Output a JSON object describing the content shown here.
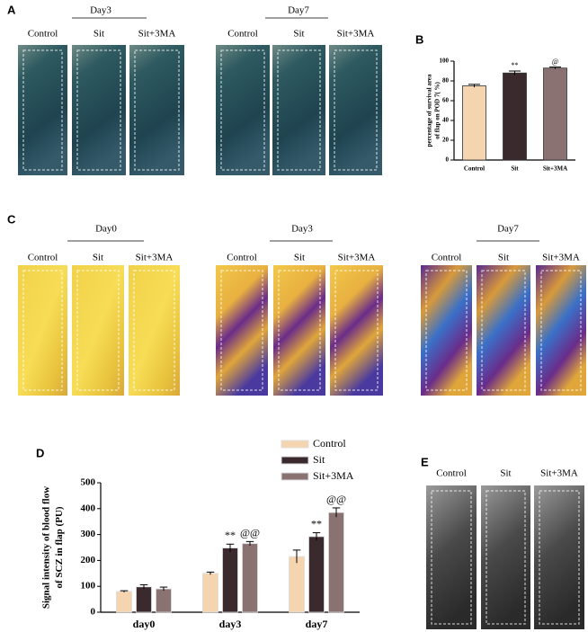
{
  "chart_data": [
    {
      "type": "bar",
      "label": "B",
      "y_label": [
        "percentage of survival area",
        "of flap on POD 7( %)"
      ],
      "categories": [
        "Control",
        "Sit",
        "Sit+3MA"
      ],
      "values": [
        75,
        88,
        93
      ],
      "errors": [
        1.5,
        2,
        1
      ],
      "colors": [
        "#f5d5b0",
        "#3a2a2e",
        "#8b7272"
      ],
      "annotations": [
        null,
        "**",
        "@"
      ],
      "ylim": [
        0,
        100
      ],
      "yticks": [
        0,
        20,
        40,
        60,
        80,
        100
      ]
    },
    {
      "type": "grouped_bar",
      "label": "D",
      "y_label": [
        "Signal intensity of blood flow",
        "of SCZ in flap  (PU)"
      ],
      "categories": [
        "day0",
        "day3",
        "day7"
      ],
      "series": [
        {
          "name": "Control",
          "color": "#f5d5b0",
          "values": [
            80,
            150,
            215
          ],
          "errors": [
            3,
            5,
            25
          ],
          "annotations": [
            null,
            null,
            null
          ]
        },
        {
          "name": "Sit",
          "color": "#3a2a2e",
          "values": [
            98,
            248,
            292
          ],
          "errors": [
            8,
            15,
            15
          ],
          "annotations": [
            null,
            "**",
            "**"
          ]
        },
        {
          "name": "Sit+3MA",
          "color": "#8b7272",
          "values": [
            90,
            265,
            385
          ],
          "errors": [
            7,
            8,
            18
          ],
          "annotations": [
            null,
            "@@",
            "@@"
          ]
        }
      ],
      "ylim": [
        0,
        500
      ],
      "yticks": [
        0,
        100,
        200,
        300,
        400,
        500
      ],
      "legend": "top-right"
    }
  ],
  "photo_panels": [
    {
      "label": "A",
      "groups": [
        {
          "title": "Day3",
          "columns": [
            "Control",
            "Sit",
            "Sit+3MA"
          ]
        },
        {
          "title": "Day7",
          "columns": [
            "Control",
            "Sit",
            "Sit+3MA"
          ]
        }
      ]
    },
    {
      "label": "C",
      "groups": [
        {
          "title": "Day0",
          "columns": [
            "Control",
            "Sit",
            "Sit+3MA"
          ]
        },
        {
          "title": "Day3",
          "columns": [
            "Control",
            "Sit",
            "Sit+3MA"
          ]
        },
        {
          "title": "Day7",
          "columns": [
            "Control",
            "Sit",
            "Sit+3MA"
          ]
        }
      ]
    },
    {
      "label": "E",
      "groups": [
        {
          "columns": [
            "Control",
            "Sit",
            "Sit+3MA"
          ]
        }
      ]
    }
  ]
}
